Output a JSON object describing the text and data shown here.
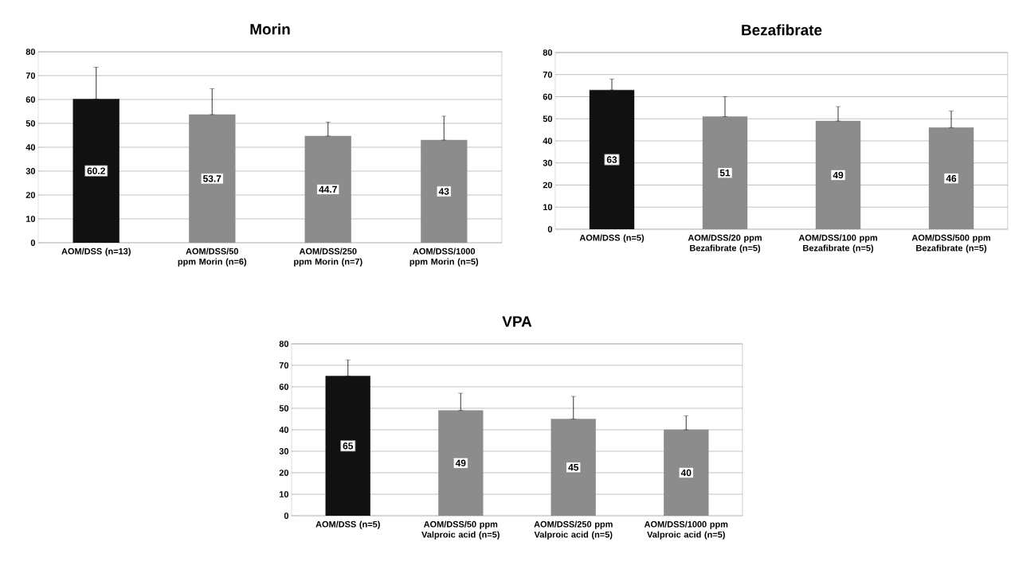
{
  "chart_data": [
    {
      "type": "bar",
      "title": "Morin",
      "categories": [
        "AOM/DSS (n=13)",
        "AOM/DSS/50 ppm Morin (n=6)",
        "AOM/DSS/250 ppm Morin (n=7)",
        "AOM/DSS/1000 ppm Morin (n=5)"
      ],
      "values": [
        60.2,
        53.7,
        44.7,
        43
      ],
      "colors": [
        "#111111",
        "#8c8c8c",
        "#8c8c8c",
        "#8c8c8c"
      ],
      "errors": [
        [
          60.2,
          73.5
        ],
        [
          53.7,
          64.5
        ],
        [
          44.7,
          50.5
        ],
        [
          43,
          53
        ]
      ],
      "ylim": [
        0,
        80
      ],
      "yticks": [
        0,
        10,
        20,
        30,
        40,
        50,
        60,
        70,
        80
      ],
      "grid": "y",
      "data_labels": true
    },
    {
      "type": "bar",
      "title": "Bezafibrate",
      "categories": [
        "AOM/DSS (n=5)",
        "AOM/DSS/20 ppm Bezafibrate (n=5)",
        "AOM/DSS/100 ppm Bezafibrate (n=5)",
        "AOM/DSS/500 ppm Bezafibrate (n=5)"
      ],
      "values": [
        63,
        51,
        49,
        46
      ],
      "colors": [
        "#111111",
        "#8c8c8c",
        "#8c8c8c",
        "#8c8c8c"
      ],
      "errors": [
        [
          63,
          68
        ],
        [
          51,
          60
        ],
        [
          49,
          55.5
        ],
        [
          46,
          53.5
        ]
      ],
      "ylim": [
        0,
        80
      ],
      "yticks": [
        0,
        10,
        20,
        30,
        40,
        50,
        60,
        70,
        80
      ],
      "grid": "y",
      "data_labels": true
    },
    {
      "type": "bar",
      "title": "VPA",
      "categories": [
        "AOM/DSS (n=5)",
        "AOM/DSS/50 ppm Valproic acid (n=5)",
        "AOM/DSS/250 ppm Valproic acid (n=5)",
        "AOM/DSS/1000 ppm Valproic acid (n=5)"
      ],
      "values": [
        65,
        49,
        45,
        40
      ],
      "colors": [
        "#111111",
        "#8c8c8c",
        "#8c8c8c",
        "#8c8c8c"
      ],
      "errors": [
        [
          65,
          72.5
        ],
        [
          49,
          57
        ],
        [
          45,
          55.5
        ],
        [
          40,
          46.5
        ]
      ],
      "ylim": [
        0,
        80
      ],
      "yticks": [
        0,
        10,
        20,
        30,
        40,
        50,
        60,
        70,
        80
      ],
      "grid": "y",
      "data_labels": true
    }
  ]
}
